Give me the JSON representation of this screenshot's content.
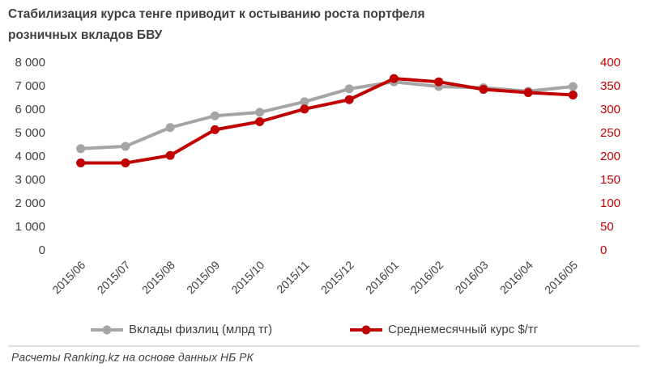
{
  "chart_data": {
    "type": "line",
    "title": [
      "Стабилизация  курса тенге приводит к остыванию  роста портфеля",
      "розничных вкладов БВУ"
    ],
    "categories": [
      "2015/06",
      "2015/07",
      "2015/08",
      "2015/09",
      "2015/10",
      "2015/11",
      "2015/12",
      "2016/01",
      "2016/02",
      "2016/03",
      "2016/04",
      "2016/05"
    ],
    "series": [
      {
        "name": "Вклады физлиц (млрд тг)",
        "color": "#a5a5a5",
        "values": [
          4350,
          4450,
          5250,
          5750,
          5900,
          6350,
          6900,
          7200,
          7000,
          6950,
          6800,
          7000
        ]
      },
      {
        "name": "Среднемесячный курс $/тг",
        "color": "#c00000",
        "axis": "y2",
        "values": [
          187,
          187,
          203,
          258,
          275,
          302,
          322,
          367,
          360,
          344,
          337,
          332
        ]
      }
    ],
    "ylim": [
      0,
      8000
    ],
    "yticks": [
      0,
      {
        "value": 1000,
        "label": "1 000"
      },
      {
        "value": 2000,
        "label": "2 000"
      },
      {
        "value": 3000,
        "label": "3 000"
      },
      {
        "value": 4000,
        "label": "4 000"
      },
      {
        "value": 5000,
        "label": "5 000"
      },
      {
        "value": 6000,
        "label": "6 000"
      },
      {
        "value": 7000,
        "label": "7 000"
      },
      {
        "value": 8000,
        "label": "8 000"
      }
    ],
    "y2lim": [
      0,
      400
    ],
    "y2ticks": [
      0,
      50,
      100,
      150,
      200,
      250,
      300,
      350,
      400
    ],
    "y2color": "#c00000",
    "grid": false,
    "legend": "bottom",
    "footnote": "Расчеты Ranking.kz на основе данных НБ РК"
  }
}
